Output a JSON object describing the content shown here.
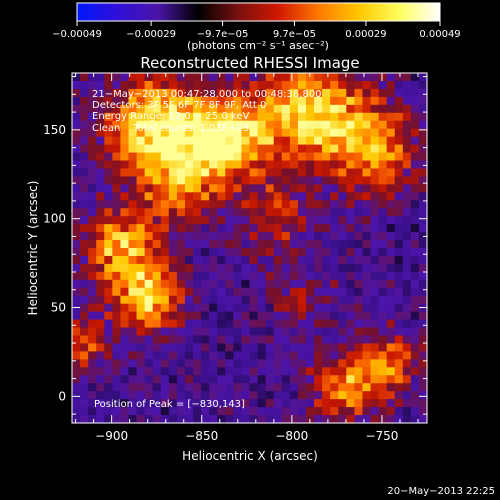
{
  "chart_data": {
    "type": "heatmap",
    "title": "Reconstructed RHESSI Image",
    "xlabel": "Heliocentric X (arcsec)",
    "ylabel": "Heliocentric Y (arcsec)",
    "xlim": [
      -922,
      -725
    ],
    "ylim": [
      -15,
      182
    ],
    "x_ticks": [
      -900,
      -850,
      -800,
      -750
    ],
    "x_tick_labels": [
      "−900",
      "−850",
      "−800",
      "−750"
    ],
    "y_ticks": [
      0,
      50,
      100,
      150
    ],
    "y_tick_labels": [
      "0",
      "50",
      "100",
      "150"
    ],
    "colorbar": {
      "ticks": [
        -0.00049,
        -0.00029,
        -9.7e-05,
        9.7e-05,
        0.00029,
        0.00049
      ],
      "tick_labels": [
        "−0.00049",
        "−0.00029",
        "−9.7e−05",
        "9.7e−05",
        "0.00029",
        "0.00049"
      ],
      "unit_label": "(photons cm⁻² s⁻¹ asec⁻²)",
      "colors": [
        "#0018ff",
        "#3010d8",
        "#4a14a8",
        "#000000",
        "#7a1010",
        "#d01800",
        "#ff7a00",
        "#ffc800",
        "#ffff60",
        "#ffffff"
      ]
    },
    "annotations": [
      "21−May−2013 00:47:28.000 to 00:48:36.800",
      "Detectors: 3F 5F 6F 7F 8F 9F, Att 0",
      "Energy Range: 12.0 − 25.0 keV",
      "Clean    Total counts: 1.03E+03"
    ],
    "peak_label": "Position of Peak = [−830,143]",
    "peak": [
      -830,
      143
    ],
    "sources": [
      {
        "x": -875,
        "y": 150,
        "amp": 1.0,
        "sigma": 20
      },
      {
        "x": -835,
        "y": 145,
        "amp": 0.95,
        "sigma": 16
      },
      {
        "x": -790,
        "y": 160,
        "amp": 0.85,
        "sigma": 20
      },
      {
        "x": -755,
        "y": 140,
        "amp": 0.7,
        "sigma": 18
      },
      {
        "x": -895,
        "y": 85,
        "amp": 0.75,
        "sigma": 15
      },
      {
        "x": -880,
        "y": 55,
        "amp": 0.8,
        "sigma": 14
      },
      {
        "x": -860,
        "y": 115,
        "amp": 0.5,
        "sigma": 14
      },
      {
        "x": -810,
        "y": 100,
        "amp": 0.45,
        "sigma": 14
      },
      {
        "x": -770,
        "y": 5,
        "amp": 0.65,
        "sigma": 14
      },
      {
        "x": -745,
        "y": 20,
        "amp": 0.55,
        "sigma": 12
      },
      {
        "x": -918,
        "y": 30,
        "amp": 0.55,
        "sigma": 10
      },
      {
        "x": -795,
        "y": 55,
        "amp": 0.3,
        "sigma": 12
      }
    ],
    "grid": false
  },
  "footer": {
    "date": "20−May−2013 22:25"
  }
}
